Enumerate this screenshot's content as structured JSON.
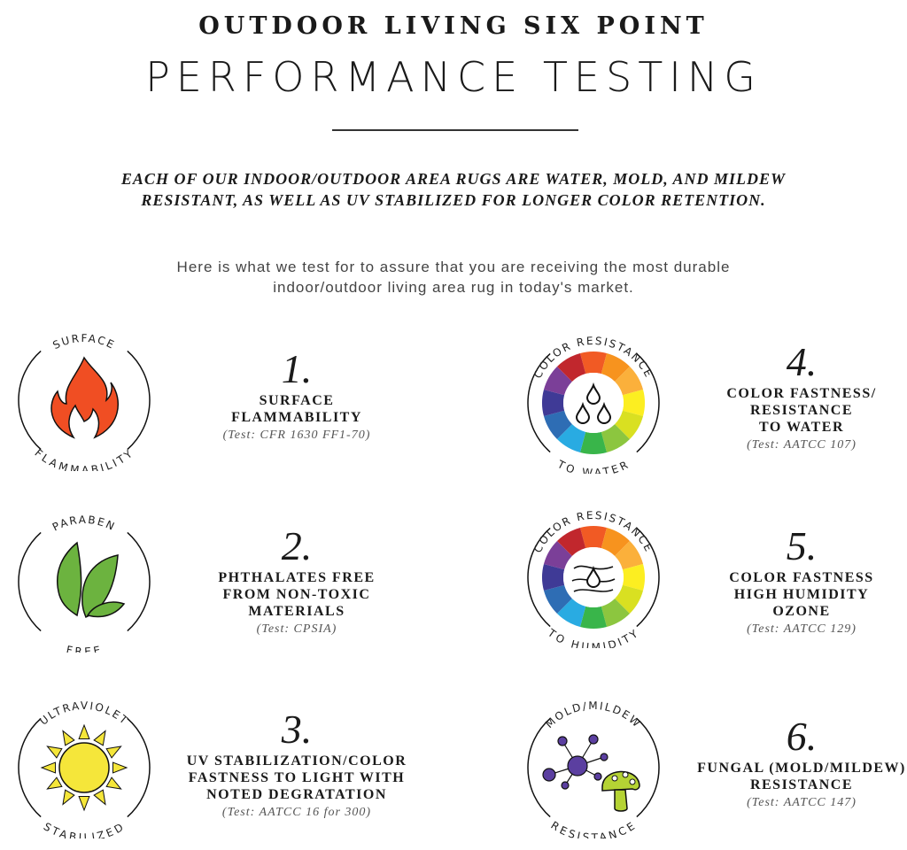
{
  "header": {
    "title_top": "OUTDOOR LIVING SIX POINT",
    "title_main": "PERFORMANCE TESTING"
  },
  "subtitle": {
    "line1": "EACH OF OUR INDOOR/OUTDOOR AREA RUGS ARE WATER, MOLD, AND MILDEW",
    "line2": "RESISTANT, AS WELL AS UV STABILIZED FOR LONGER COLOR RETENTION."
  },
  "intro": {
    "line1": "Here is what we test for to assure that you are receiving the most durable",
    "line2": "indoor/outdoor living area rug in today's market."
  },
  "items": [
    {
      "number": "1.",
      "heading": [
        "SURFACE",
        "FLAMMABILITY"
      ],
      "test": "(Test: CFR 1630 FF1-70)",
      "badge_top": "SURFACE",
      "badge_bottom": "FLAMMABILITY",
      "icon": "flame-icon"
    },
    {
      "number": "2.",
      "heading": [
        "PHTHALATES FREE",
        "FROM NON-TOXIC",
        "MATERIALS"
      ],
      "test": "(Test: CPSIA)",
      "badge_top": "PARABEN",
      "badge_bottom": "FREE",
      "icon": "leaves-icon"
    },
    {
      "number": "3.",
      "heading": [
        "UV STABILIZATION/COLOR",
        "FASTNESS TO LIGHT WITH",
        "NOTED DEGRATATION"
      ],
      "test": "(Test: AATCC 16 for 300)",
      "badge_top": "ULTRAVIOLET",
      "badge_bottom": "STABILIZED",
      "icon": "sun-icon"
    },
    {
      "number": "4.",
      "heading": [
        "COLOR FASTNESS/",
        "RESISTANCE",
        "TO WATER"
      ],
      "test": "(Test: AATCC 107)",
      "badge_top": "COLOR RESISTANCE",
      "badge_bottom": "TO WATER",
      "icon": "water-drops-icon"
    },
    {
      "number": "5.",
      "heading": [
        "COLOR FASTNESS",
        "HIGH HUMIDITY",
        "OZONE"
      ],
      "test": "(Test: AATCC 129)",
      "badge_top": "COLOR RESISTANCE",
      "badge_bottom": "TO HUMIDITY",
      "icon": "humidity-icon"
    },
    {
      "number": "6.",
      "heading": [
        "FUNGAL (MOLD/MILDEW)",
        "RESISTANCE"
      ],
      "test": "(Test: AATCC 147)",
      "badge_top": "MOLD/MILDEW",
      "badge_bottom": "RESISTANCE",
      "icon": "mold-mushroom-icon"
    }
  ],
  "colors": {
    "flame": "#f04e23",
    "leaf": "#6cb33f",
    "sun": "#f5e63a",
    "mold": "#5b3fa0",
    "mushroom": "#b5d334",
    "wheel": [
      "#f15a24",
      "#f7931e",
      "#fbb03b",
      "#fcee21",
      "#d9e021",
      "#8cc63f",
      "#39b54a",
      "#29abe2",
      "#2e6db4",
      "#3f3a96",
      "#7b3f98",
      "#c1272d"
    ]
  }
}
